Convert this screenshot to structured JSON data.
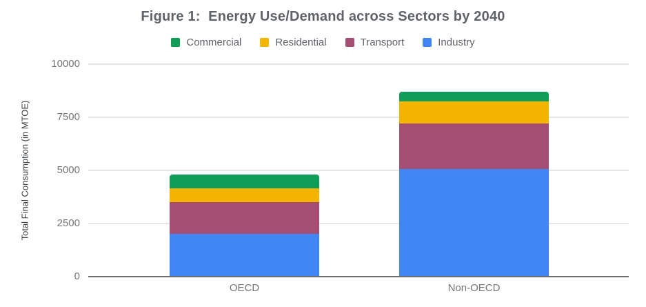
{
  "chart_data": {
    "type": "bar",
    "stacked": true,
    "title": "Figure 1:  Energy Use/Demand across Sectors by 2040",
    "xlabel": "",
    "ylabel": "Total Final Consumption (in MTOE)",
    "categories": [
      "OECD",
      "Non-OECD"
    ],
    "series": [
      {
        "name": "Industry",
        "color": "#4285F4",
        "values": [
          2000,
          5050
        ]
      },
      {
        "name": "Transport",
        "color": "#A64D73",
        "values": [
          1500,
          2150
        ]
      },
      {
        "name": "Residential",
        "color": "#F4B400",
        "values": [
          650,
          1050
        ]
      },
      {
        "name": "Commercial",
        "color": "#0F9D58",
        "values": [
          650,
          450
        ]
      }
    ],
    "stack_order_bottom_to_top": [
      "Industry",
      "Transport",
      "Residential",
      "Commercial"
    ],
    "totals": [
      4800,
      8700
    ],
    "ylim": [
      0,
      10000
    ],
    "yticks": [
      "0",
      "2500",
      "5000",
      "7500",
      "10000"
    ],
    "grid": true,
    "legend_position": "top",
    "legend_order": [
      "Commercial",
      "Residential",
      "Transport",
      "Industry"
    ]
  },
  "style": {
    "title_color": "#5f6368",
    "tick_label_color": "#757575",
    "category_label_color": "#757575",
    "legend_label_color": "#5f6368",
    "axis_title_color": "#3c4043",
    "gridline_color": "#e6e6e6",
    "baseline_color": "#6e6e6e",
    "background": "#ffffff"
  }
}
